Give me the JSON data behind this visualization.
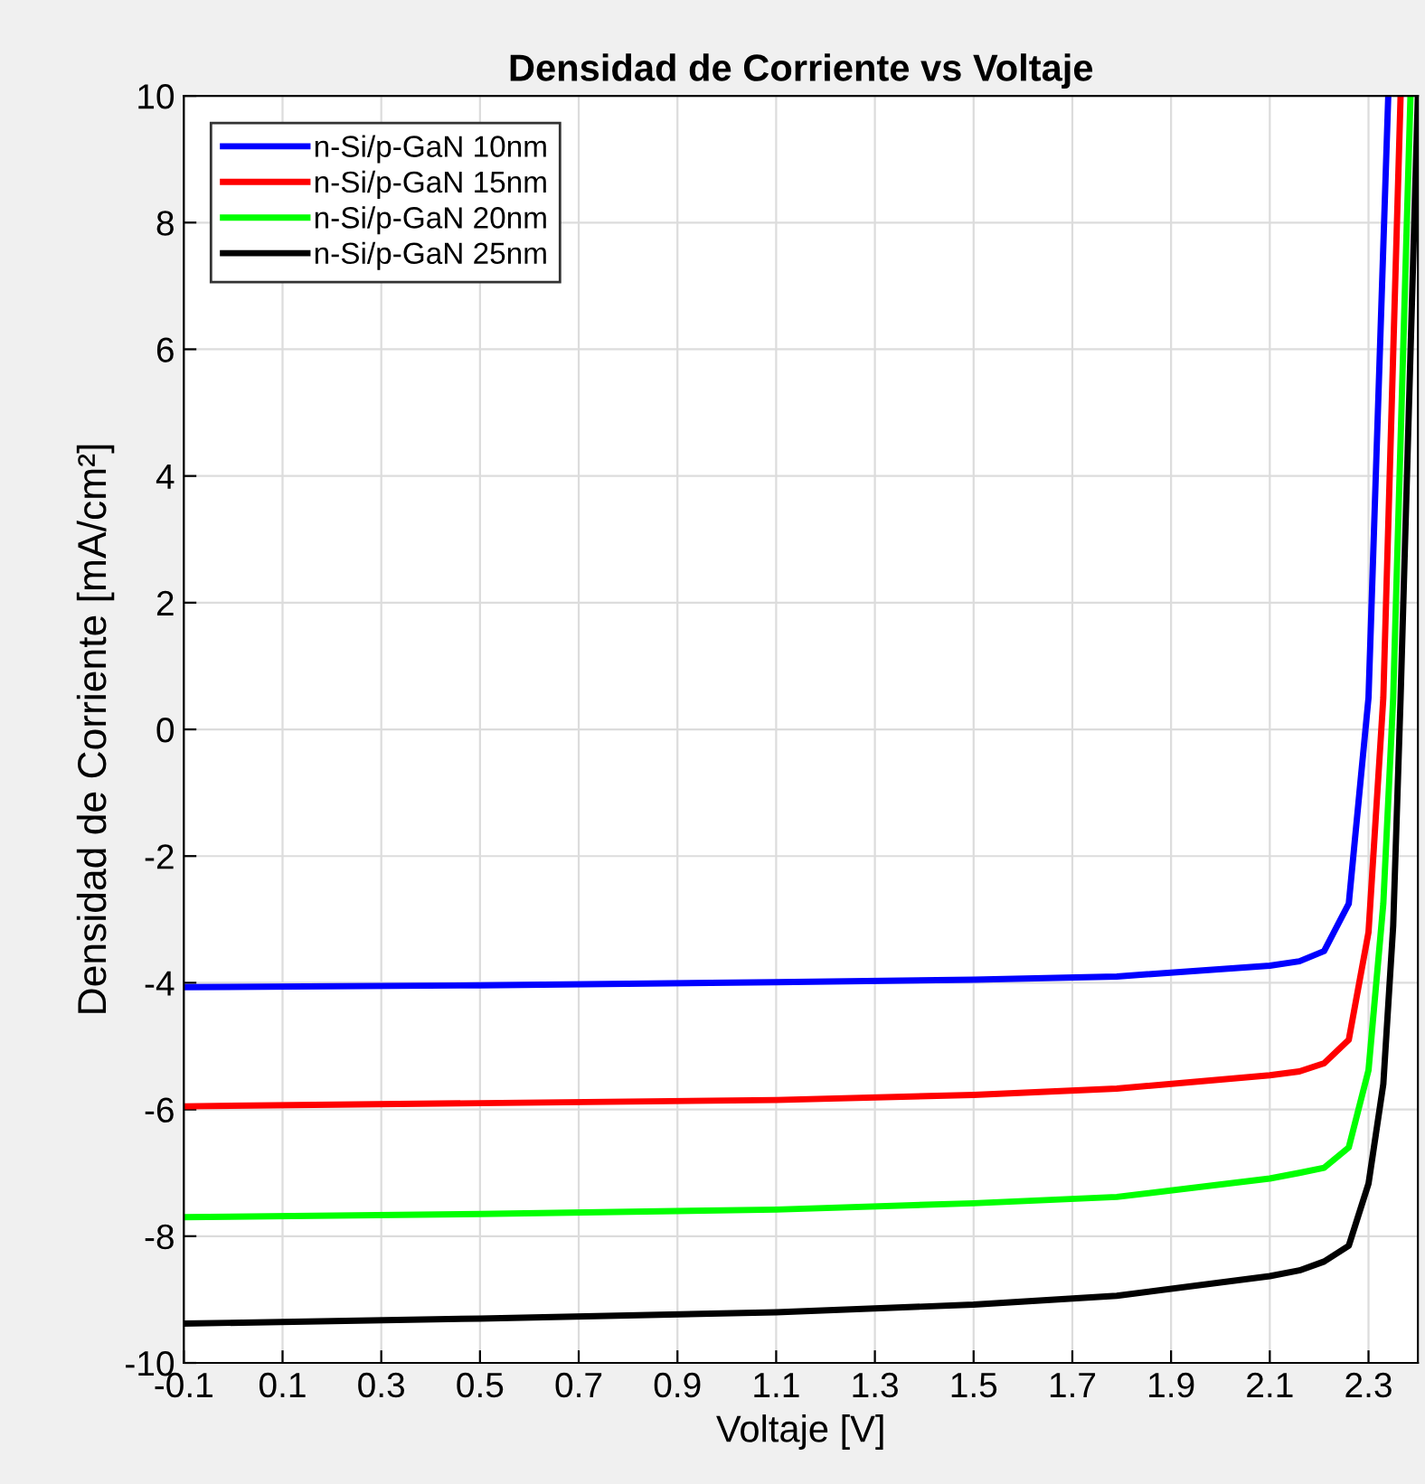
{
  "chart_data": {
    "type": "line",
    "title": "Densidad de Corriente vs Voltaje",
    "xlabel": "Voltaje [V]",
    "ylabel": "Densidad de Corriente [mA/cm²]",
    "xlim": [
      -0.1,
      2.4
    ],
    "xticks": [
      -0.1,
      0.1,
      0.3,
      0.5,
      0.7,
      0.9,
      1.1,
      1.3,
      1.5,
      1.7,
      1.9,
      2.1,
      2.3
    ],
    "ylim": [
      -10,
      10
    ],
    "yticks": [
      -10,
      -8,
      -6,
      -4,
      -2,
      0,
      2,
      4,
      6,
      8,
      10
    ],
    "grid": true,
    "legend": "top left",
    "marker": "none",
    "line_style": "solid",
    "series": [
      {
        "name": "n-Si/p-GaN 10nm",
        "color": "#0000ff",
        "x": [
          -0.1,
          0.5,
          1.1,
          1.5,
          1.79,
          2.1,
          2.16,
          2.21,
          2.26,
          2.3,
          2.34
        ],
        "values": [
          -4.07,
          -4.04,
          -3.99,
          -3.95,
          -3.9,
          -3.73,
          -3.66,
          -3.5,
          -2.75,
          0.5,
          10
        ]
      },
      {
        "name": "n-Si/p-GaN 15nm",
        "color": "#ff0000",
        "x": [
          -0.1,
          0.5,
          1.1,
          1.5,
          1.79,
          2.1,
          2.16,
          2.21,
          2.26,
          2.3,
          2.33,
          2.365
        ],
        "values": [
          -5.95,
          -5.9,
          -5.85,
          -5.77,
          -5.67,
          -5.46,
          -5.4,
          -5.27,
          -4.9,
          -3.2,
          0.5,
          10
        ]
      },
      {
        "name": "n-Si/p-GaN 20nm",
        "color": "#00ff00",
        "x": [
          -0.1,
          0.5,
          1.1,
          1.5,
          1.79,
          2.1,
          2.16,
          2.21,
          2.26,
          2.3,
          2.33,
          2.35,
          2.385
        ],
        "values": [
          -7.7,
          -7.65,
          -7.58,
          -7.48,
          -7.38,
          -7.09,
          -7.0,
          -6.92,
          -6.6,
          -5.38,
          -2.75,
          0.5,
          10
        ]
      },
      {
        "name": "n-Si/p-GaN 25nm",
        "color": "#000000",
        "x": [
          -0.1,
          0.5,
          1.1,
          1.5,
          1.79,
          2.1,
          2.16,
          2.21,
          2.26,
          2.3,
          2.33,
          2.35,
          2.365,
          2.4
        ],
        "values": [
          -9.38,
          -9.3,
          -9.2,
          -9.08,
          -8.94,
          -8.63,
          -8.54,
          -8.4,
          -8.15,
          -7.17,
          -5.6,
          -3.1,
          0.5,
          10
        ]
      }
    ]
  }
}
